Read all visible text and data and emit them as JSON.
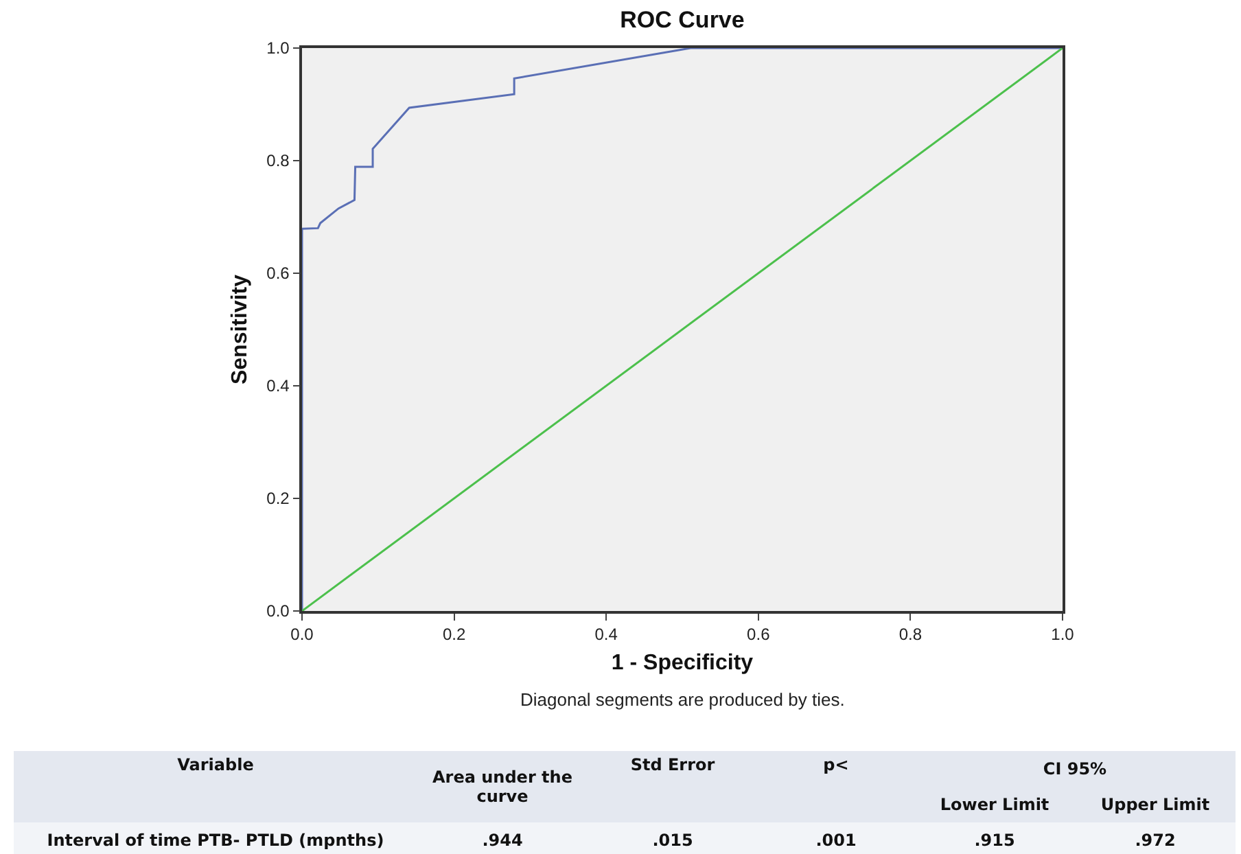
{
  "chart_data": {
    "type": "line",
    "title": "ROC Curve",
    "xlabel": "1 - Specificity",
    "ylabel": "Sensitivity",
    "xlim": [
      0,
      1
    ],
    "ylim": [
      0,
      1
    ],
    "xticks": [
      {
        "value": 0,
        "label": "0.0"
      },
      {
        "value": 0.2,
        "label": "0.2"
      },
      {
        "value": 0.4,
        "label": "0.4"
      },
      {
        "value": 0.6,
        "label": "0.6"
      },
      {
        "value": 0.8,
        "label": "0.8"
      },
      {
        "value": 1,
        "label": "1.0"
      }
    ],
    "yticks": [
      {
        "value": 0,
        "label": "0.0"
      },
      {
        "value": 0.2,
        "label": "0.2"
      },
      {
        "value": 0.4,
        "label": "0.4"
      },
      {
        "value": 0.6,
        "label": "0.6"
      },
      {
        "value": 0.8,
        "label": "0.8"
      },
      {
        "value": 1,
        "label": "1.0"
      }
    ],
    "grid": false,
    "series": [
      {
        "color": "#5a6fb5",
        "x": [
          0,
          0,
          0.021,
          0.024,
          0.048,
          0.069,
          0.07,
          0.093,
          0.093,
          0.141,
          0.279,
          0.279,
          0.511,
          1
        ],
        "values": [
          0,
          0.679,
          0.68,
          0.689,
          0.715,
          0.73,
          0.789,
          0.789,
          0.821,
          0.894,
          0.918,
          0.946,
          1,
          1
        ]
      },
      {
        "color": "#4cc04c",
        "x": [
          0,
          1
        ],
        "values": [
          0,
          1
        ]
      }
    ],
    "annotations": [
      "Diagonal segments are produced by ties.",
      "Variable",
      "Area under the curve",
      "Std Error",
      "p<",
      "CI 95%",
      "Lower Limit",
      "Upper Limit",
      "Interval of time PTB- PTLD (mpnths)",
      ".944",
      ".015",
      ".001",
      ".915",
      ".972"
    ]
  }
}
